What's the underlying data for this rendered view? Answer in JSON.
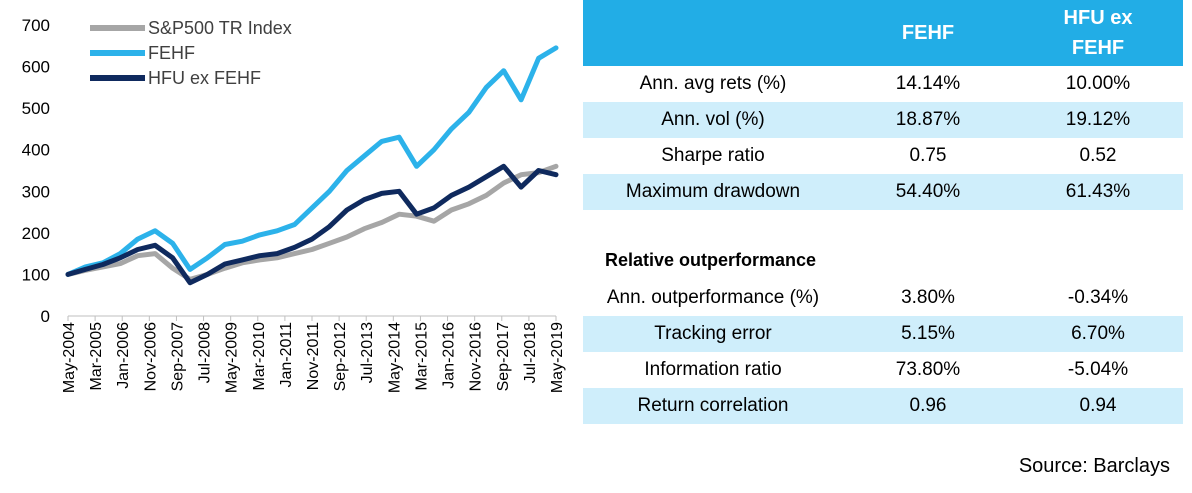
{
  "chart_data": {
    "type": "line",
    "x_ticks": [
      "May-2004",
      "Mar-2005",
      "Jan-2006",
      "Nov-2006",
      "Sep-2007",
      "Jul-2008",
      "May-2009",
      "Mar-2010",
      "Jan-2011",
      "Nov-2011",
      "Sep-2012",
      "Jul-2013",
      "May-2014",
      "Mar-2015",
      "Jan-2016",
      "Nov-2016",
      "Sep-2017",
      "Jul-2018",
      "May-2019"
    ],
    "ylim": [
      0,
      700
    ],
    "y_ticks": [
      0,
      100,
      200,
      300,
      400,
      500,
      600,
      700
    ],
    "grid": false,
    "legend_position": "top-left",
    "series": [
      {
        "name": "S&P500 TR Index",
        "color": "#a6a6a6",
        "values": [
          100,
          110,
          118,
          126,
          145,
          150,
          115,
          88,
          100,
          115,
          128,
          135,
          140,
          150,
          160,
          175,
          190,
          210,
          225,
          245,
          240,
          228,
          255,
          270,
          290,
          320,
          340,
          345,
          360
        ]
      },
      {
        "name": "FEHF",
        "color": "#2cb2ea",
        "values": [
          100,
          118,
          128,
          150,
          185,
          205,
          175,
          112,
          140,
          172,
          180,
          195,
          205,
          220,
          260,
          300,
          350,
          385,
          420,
          430,
          360,
          400,
          450,
          490,
          550,
          590,
          520,
          620,
          645
        ]
      },
      {
        "name": "HFU ex FEHF",
        "color": "#0f2a5e",
        "values": [
          100,
          112,
          124,
          140,
          160,
          170,
          140,
          80,
          100,
          125,
          135,
          145,
          150,
          165,
          185,
          215,
          255,
          280,
          295,
          300,
          245,
          260,
          290,
          310,
          335,
          360,
          310,
          350,
          340
        ]
      }
    ]
  },
  "table": {
    "headers": [
      "",
      "FEHF",
      "HFU ex FEHF"
    ],
    "rows": [
      {
        "label": "Ann. avg rets (%)",
        "fehf": "14.14%",
        "hfu": "10.00%"
      },
      {
        "label": "Ann. vol (%)",
        "fehf": "18.87%",
        "hfu": "19.12%"
      },
      {
        "label": "Sharpe ratio",
        "fehf": "0.75",
        "hfu": "0.52"
      },
      {
        "label": "Maximum drawdown",
        "fehf": "54.40%",
        "hfu": "61.43%"
      }
    ],
    "section_title": "Relative outperformance",
    "rows2": [
      {
        "label": "Ann. outperformance (%)",
        "fehf": "3.80%",
        "hfu": "-0.34%"
      },
      {
        "label": "Tracking error",
        "fehf": "5.15%",
        "hfu": "6.70%"
      },
      {
        "label": "Information ratio",
        "fehf": "73.80%",
        "hfu": "-5.04%"
      },
      {
        "label": "Return correlation",
        "fehf": "0.96",
        "hfu": "0.94"
      }
    ]
  },
  "source": "Source:  Barclays"
}
